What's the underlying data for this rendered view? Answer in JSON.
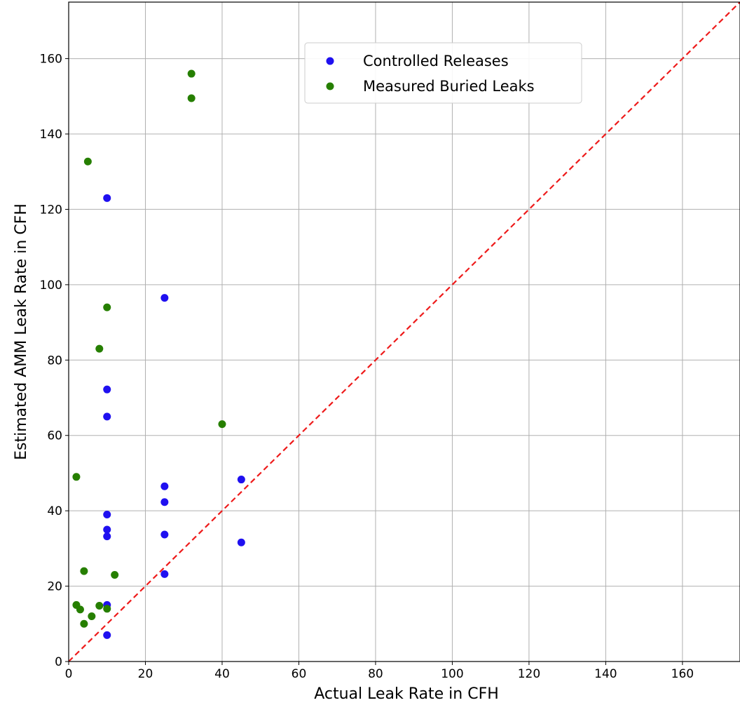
{
  "chart_data": {
    "type": "scatter",
    "title": "",
    "xlabel": "Actual Leak Rate in CFH",
    "ylabel": "Estimated AMM Leak Rate in CFH",
    "xlim": [
      0,
      175
    ],
    "ylim": [
      0,
      175
    ],
    "xticks": [
      0,
      20,
      40,
      60,
      80,
      100,
      120,
      140,
      160
    ],
    "yticks": [
      0,
      20,
      40,
      60,
      80,
      100,
      120,
      140,
      160
    ],
    "grid": true,
    "legend": {
      "placement": "upper-center"
    },
    "series": [
      {
        "name": "Controlled Releases",
        "color": "#1f10f0",
        "points": [
          {
            "x": 10,
            "y": 123
          },
          {
            "x": 10,
            "y": 72.2
          },
          {
            "x": 10,
            "y": 65
          },
          {
            "x": 10,
            "y": 39
          },
          {
            "x": 10,
            "y": 35
          },
          {
            "x": 10,
            "y": 33.2
          },
          {
            "x": 10,
            "y": 15
          },
          {
            "x": 10,
            "y": 7
          },
          {
            "x": 25,
            "y": 96.5
          },
          {
            "x": 25,
            "y": 46.5
          },
          {
            "x": 25,
            "y": 42.3
          },
          {
            "x": 25,
            "y": 33.7
          },
          {
            "x": 25,
            "y": 23.2
          },
          {
            "x": 45,
            "y": 48.3
          },
          {
            "x": 45,
            "y": 31.6
          }
        ]
      },
      {
        "name": "Measured Buried Leaks",
        "color": "#267f00",
        "points": [
          {
            "x": 32,
            "y": 156
          },
          {
            "x": 32,
            "y": 149.5
          },
          {
            "x": 5,
            "y": 132.7
          },
          {
            "x": 10,
            "y": 94
          },
          {
            "x": 8,
            "y": 83
          },
          {
            "x": 40,
            "y": 63
          },
          {
            "x": 2,
            "y": 49
          },
          {
            "x": 4,
            "y": 24
          },
          {
            "x": 12,
            "y": 23
          },
          {
            "x": 2,
            "y": 15
          },
          {
            "x": 3,
            "y": 13.8
          },
          {
            "x": 8,
            "y": 14.8
          },
          {
            "x": 10,
            "y": 14
          },
          {
            "x": 6,
            "y": 12
          },
          {
            "x": 4,
            "y": 10
          }
        ]
      }
    ],
    "reference_line": {
      "from": [
        0,
        0
      ],
      "to": [
        175,
        175
      ],
      "color": "#ee1a1a",
      "style": "dashed"
    }
  }
}
